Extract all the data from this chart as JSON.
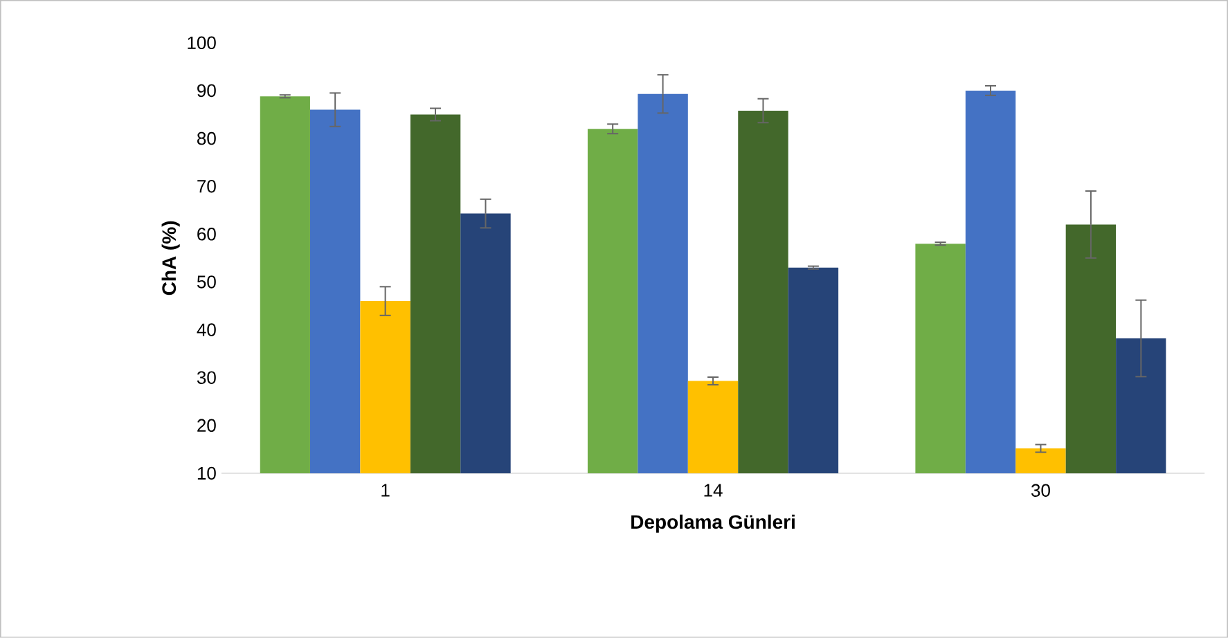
{
  "chart_data": {
    "type": "bar",
    "xlabel": "Depolama Günleri",
    "ylabel": "ChA (%)",
    "categories": [
      "1",
      "14",
      "30"
    ],
    "series": [
      {
        "color": "#70ad47",
        "values": [
          88.8,
          82,
          58
        ],
        "errors": [
          0.3,
          1,
          0.3
        ]
      },
      {
        "color": "#4472c4",
        "values": [
          86,
          89.3,
          90
        ],
        "errors": [
          3.5,
          4,
          1
        ]
      },
      {
        "color": "#ffc000",
        "values": [
          46,
          29.3,
          15.2
        ],
        "errors": [
          3,
          0.8,
          0.8
        ]
      },
      {
        "color": "#43682b",
        "values": [
          85,
          85.8,
          62
        ],
        "errors": [
          1.3,
          2.5,
          7
        ]
      },
      {
        "color": "#264478",
        "values": [
          64.3,
          53,
          38.2
        ],
        "errors": [
          3,
          0.3,
          8
        ]
      }
    ],
    "ylim": [
      10,
      100
    ],
    "yticks": [
      10,
      20,
      30,
      40,
      50,
      60,
      70,
      80,
      90,
      100
    ],
    "grid": false
  }
}
